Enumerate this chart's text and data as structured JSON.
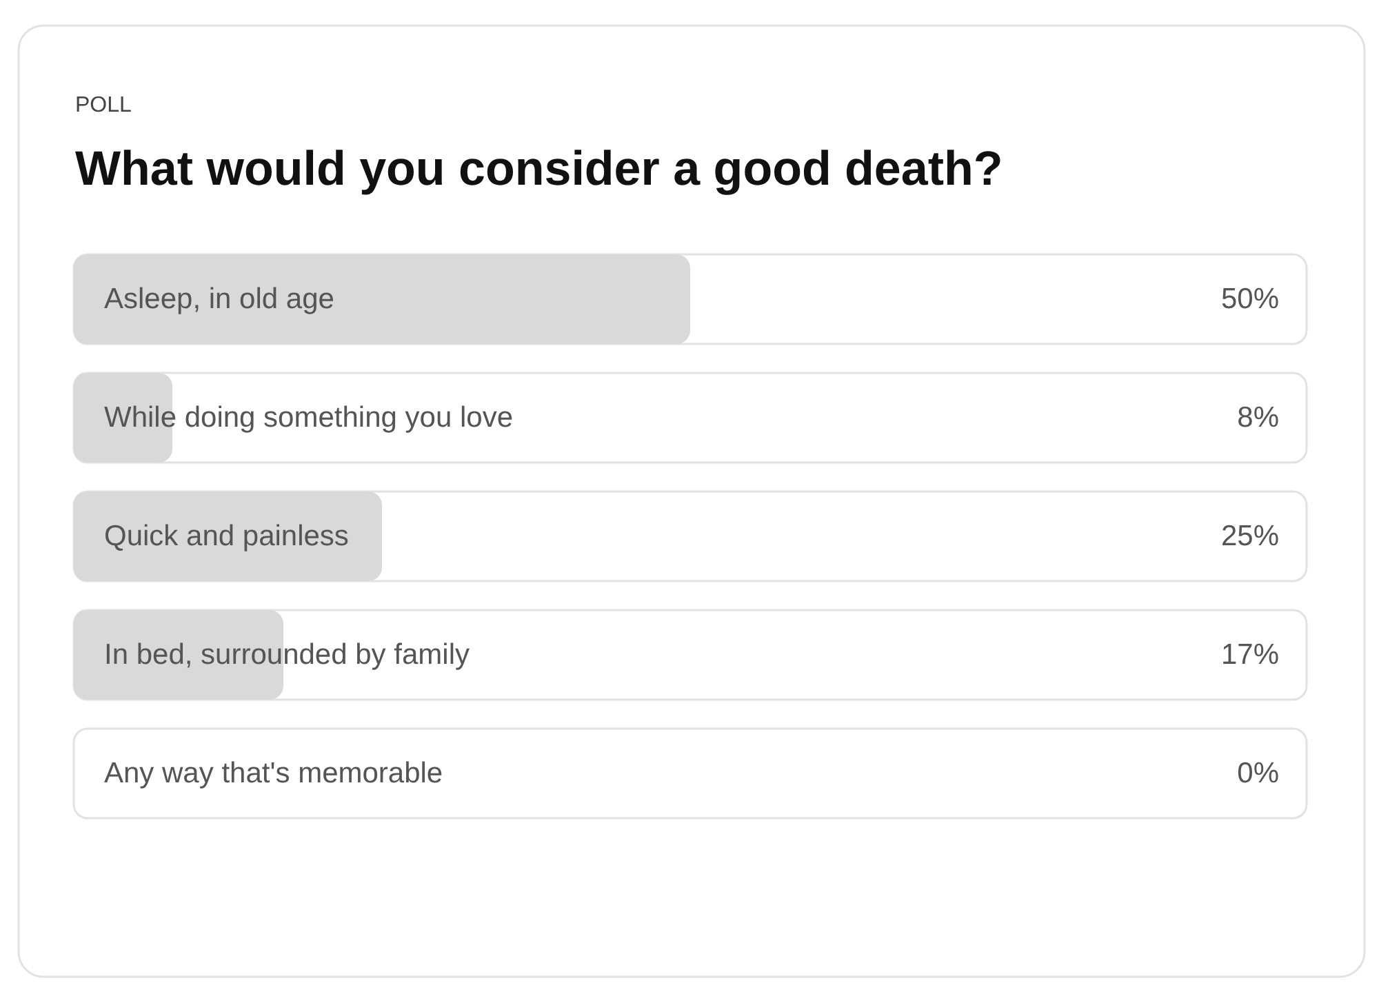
{
  "chart_data": {
    "type": "bar",
    "orientation": "horizontal",
    "title": "What would you consider a good death?",
    "annotations": [
      "POLL"
    ],
    "categories": [
      "Asleep, in old age",
      "While doing something you love",
      "Quick and painless",
      "In bed, surrounded by family",
      "Any way that's memorable"
    ],
    "values": [
      50,
      8,
      25,
      17,
      0
    ],
    "value_labels": [
      "50%",
      "8%",
      "25%",
      "17%",
      "0%"
    ],
    "color": "#d9d9d9",
    "xlim": [
      0,
      100
    ],
    "tick_labels": false
  }
}
